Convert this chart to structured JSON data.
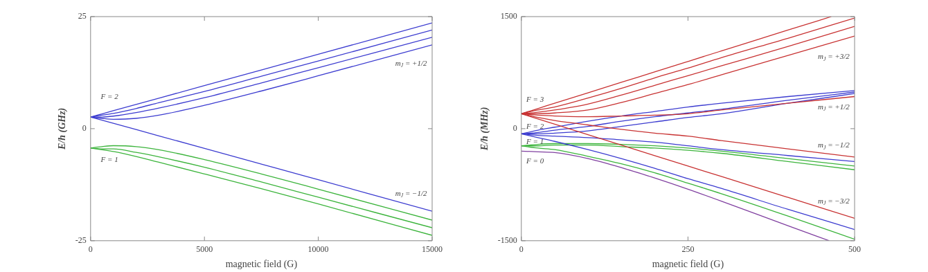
{
  "chart_data": [
    {
      "type": "line",
      "xlabel": "magnetic field (G)",
      "ylabel": "E/h (GHz)",
      "marker": "none",
      "line_style": "solid",
      "grid": false,
      "legend": false,
      "x": [
        0,
        500,
        1000,
        2000,
        3000,
        5000,
        7500,
        10000,
        15000
      ],
      "xlim": [
        0,
        15000
      ],
      "xticks": [
        0,
        5000,
        10000,
        15000
      ],
      "ylim": [
        -25,
        25
      ],
      "yticks": [
        -25,
        0,
        25
      ],
      "series": [
        {
          "color": "#3c3cd0",
          "values": [
            2.6,
            3.3,
            4.0,
            5.4,
            6.8,
            9.6,
            13.1,
            16.6,
            23.6
          ]
        },
        {
          "color": "#3c3cd0",
          "values": [
            2.6,
            3.0,
            3.4,
            4.5,
            5.8,
            8.3,
            11.7,
            15.1,
            22.0
          ]
        },
        {
          "color": "#3c3cd0",
          "values": [
            2.6,
            2.6,
            2.8,
            3.6,
            4.6,
            6.9,
            10.2,
            13.6,
            20.4
          ]
        },
        {
          "color": "#3c3cd0",
          "values": [
            2.6,
            2.3,
            2.1,
            2.3,
            3.0,
            5.2,
            8.4,
            11.8,
            18.7
          ]
        },
        {
          "color": "#3c3cd0",
          "values": [
            2.6,
            1.9,
            1.2,
            -0.2,
            -1.6,
            -4.4,
            -7.9,
            -11.4,
            -18.4
          ]
        },
        {
          "color": "#3cb43c",
          "values": [
            -4.3,
            -4.7,
            -5.1,
            -6.2,
            -7.5,
            -10.1,
            -13.4,
            -16.8,
            -23.8
          ]
        },
        {
          "color": "#3cb43c",
          "values": [
            -4.3,
            -4.5,
            -4.5,
            -5.3,
            -6.3,
            -8.6,
            -11.9,
            -15.3,
            -22.1
          ]
        },
        {
          "color": "#3cb43c",
          "values": [
            -4.3,
            -4.0,
            -3.8,
            -4.0,
            -4.7,
            -6.9,
            -10.1,
            -13.5,
            -20.4
          ]
        }
      ],
      "annotations": [
        "F = 2",
        "F = 1",
        "m$_{J}$ = +1/2",
        "m$_{J}$ = −1/2"
      ]
    },
    {
      "type": "line",
      "xlabel": "magnetic field (G)",
      "ylabel": "E/h (MHz)",
      "marker": "none",
      "line_style": "solid",
      "grid": false,
      "legend": false,
      "x": [
        0,
        25,
        50,
        100,
        150,
        200,
        250,
        300,
        400,
        500
      ],
      "xlim": [
        0,
        500
      ],
      "xticks": [
        0,
        250,
        500
      ],
      "ylim": [
        -1500,
        1500
      ],
      "yticks": [
        -1500,
        0,
        1500
      ],
      "series": [
        {
          "color": "#c83232",
          "x": [
            0,
            25,
            50,
            100,
            150,
            200,
            250,
            300,
            400,
            465
          ],
          "values": [
            200,
            270,
            340,
            480,
            620,
            760,
            900,
            1040,
            1320,
            1500
          ]
        },
        {
          "color": "#c83232",
          "values": [
            200,
            250,
            290,
            410,
            540,
            680,
            810,
            950,
            1210,
            1480
          ]
        },
        {
          "color": "#c83232",
          "values": [
            200,
            220,
            250,
            330,
            450,
            580,
            710,
            840,
            1100,
            1370
          ]
        },
        {
          "color": "#c83232",
          "values": [
            200,
            200,
            210,
            250,
            350,
            470,
            590,
            720,
            980,
            1240
          ]
        },
        {
          "color": "#c83232",
          "values": [
            200,
            180,
            170,
            160,
            170,
            180,
            200,
            250,
            340,
            430
          ]
        },
        {
          "color": "#c83232",
          "values": [
            200,
            150,
            110,
            50,
            -10,
            -60,
            -100,
            -160,
            -270,
            -380
          ]
        },
        {
          "color": "#c83232",
          "values": [
            200,
            130,
            60,
            -80,
            -220,
            -360,
            -500,
            -640,
            -920,
            -1200
          ]
        },
        {
          "color": "#3c3cd0",
          "values": [
            -70,
            -20,
            20,
            100,
            170,
            230,
            290,
            340,
            430,
            510
          ]
        },
        {
          "color": "#3c3cd0",
          "values": [
            -70,
            -50,
            -20,
            30,
            100,
            160,
            210,
            260,
            380,
            490
          ]
        },
        {
          "color": "#3c3cd0",
          "values": [
            -70,
            -70,
            -60,
            -30,
            30,
            90,
            150,
            200,
            340,
            470
          ]
        },
        {
          "color": "#3c3cd0",
          "values": [
            -70,
            -90,
            -100,
            -120,
            -150,
            -180,
            -230,
            -280,
            -360,
            -440
          ]
        },
        {
          "color": "#3c3cd0",
          "values": [
            -70,
            -120,
            -170,
            -280,
            -400,
            -530,
            -670,
            -800,
            -1080,
            -1350
          ]
        },
        {
          "color": "#3cb43c",
          "values": [
            -230,
            -210,
            -200,
            -200,
            -210,
            -230,
            -260,
            -300,
            -400,
            -500
          ]
        },
        {
          "color": "#3cb43c",
          "values": [
            -230,
            -230,
            -220,
            -220,
            -240,
            -260,
            -290,
            -330,
            -440,
            -550
          ]
        },
        {
          "color": "#3cb43c",
          "values": [
            -230,
            -260,
            -280,
            -370,
            -470,
            -590,
            -730,
            -870,
            -1170,
            -1480
          ]
        },
        {
          "color": "#8040a0",
          "x": [
            0,
            25,
            50,
            100,
            150,
            200,
            250,
            300,
            400,
            462
          ],
          "values": [
            -300,
            -310,
            -320,
            -400,
            -520,
            -660,
            -810,
            -970,
            -1300,
            -1500
          ]
        }
      ],
      "annotations": [
        "F = 3",
        "F = 2",
        "F = 1",
        "F = 0",
        "m$_{J}$ = +3/2",
        "m$_{J}$ = +1/2",
        "m$_{J}$ = −1/2",
        "m$_{J}$ = −3/2"
      ]
    }
  ]
}
